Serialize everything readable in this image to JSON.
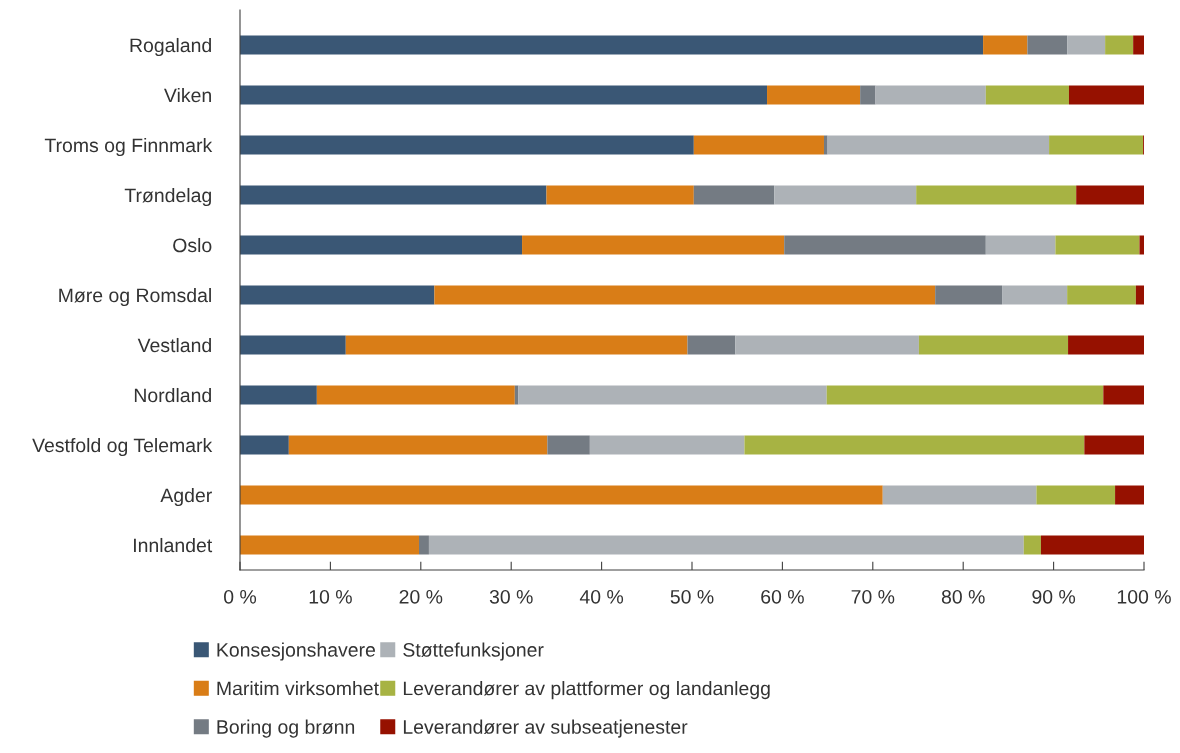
{
  "chart_data": {
    "type": "bar",
    "orientation": "horizontal",
    "stacked": true,
    "grid": false,
    "legend": "bottom",
    "categories": [
      "Rogaland",
      "Viken",
      "Troms og Finnmark",
      "Trøndelag",
      "Oslo",
      "Møre og Romsdal",
      "Vestland",
      "Nordland",
      "Vestfold og Telemark",
      "Agder",
      "Innlandet"
    ],
    "xlim": [
      0,
      100
    ],
    "xticks": [
      {
        "value": 0,
        "label": "0 %"
      },
      {
        "value": 10,
        "label": "10 %"
      },
      {
        "value": 20,
        "label": "20 %"
      },
      {
        "value": 30,
        "label": "30 %"
      },
      {
        "value": 40,
        "label": "40 %"
      },
      {
        "value": 50,
        "label": "50 %"
      },
      {
        "value": 60,
        "label": "60 %"
      },
      {
        "value": 70,
        "label": "70 %"
      },
      {
        "value": 80,
        "label": "80 %"
      },
      {
        "value": 90,
        "label": "90 %"
      },
      {
        "value": 100,
        "label": "100 %"
      }
    ],
    "series": [
      {
        "name": "Konsesjonshavere",
        "color": "#3a5775",
        "values": [
          82.2,
          58.3,
          50.2,
          33.9,
          31.2,
          21.5,
          11.7,
          8.5,
          5.4,
          0,
          0
        ]
      },
      {
        "name": "Maritim virksomhet",
        "color": "#d97d17",
        "values": [
          4.9,
          10.3,
          14.4,
          16.3,
          29.0,
          55.4,
          37.8,
          21.9,
          28.6,
          71.1,
          19.8
        ]
      },
      {
        "name": "Boring og brønn",
        "color": "#747b83",
        "values": [
          4.4,
          1.7,
          0.4,
          8.9,
          22.3,
          7.4,
          5.3,
          0.4,
          4.7,
          0,
          1.1
        ]
      },
      {
        "name": "Støttefunksjoner",
        "color": "#adb2b7",
        "values": [
          4.2,
          12.2,
          24.5,
          15.7,
          7.7,
          7.2,
          20.3,
          34.1,
          17.1,
          17.0,
          65.8
        ]
      },
      {
        "name": "Leverandører av plattformer og landanlegg",
        "color": "#a7b343",
        "values": [
          3.1,
          9.2,
          10.4,
          17.7,
          9.3,
          7.6,
          16.5,
          30.6,
          37.6,
          8.7,
          1.9
        ]
      },
      {
        "name": "Leverandører av subseatjenester",
        "color": "#961100",
        "values": [
          1.2,
          8.3,
          0.1,
          7.5,
          0.5,
          0.9,
          8.4,
          4.5,
          6.6,
          3.2,
          11.4
        ]
      }
    ]
  }
}
